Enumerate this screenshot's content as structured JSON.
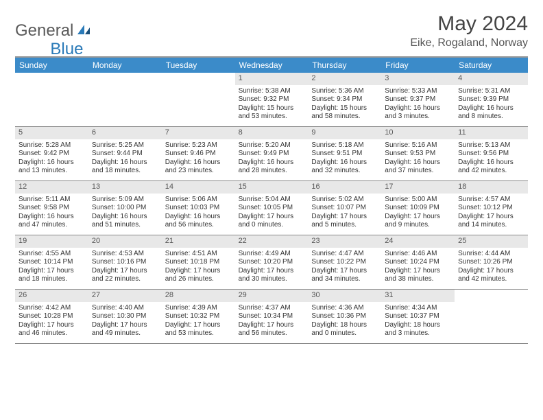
{
  "logo": {
    "text1": "General",
    "text2": "Blue"
  },
  "title": {
    "month": "May 2024",
    "location": "Eike, Rogaland, Norway"
  },
  "colors": {
    "header_bg": "#3b8bc9",
    "header_text": "#ffffff",
    "daynum_bg": "#e8e8e8",
    "border": "#888888",
    "top_border": "#999999",
    "text": "#333333"
  },
  "day_names": [
    "Sunday",
    "Monday",
    "Tuesday",
    "Wednesday",
    "Thursday",
    "Friday",
    "Saturday"
  ],
  "weeks": [
    [
      {
        "n": "",
        "sunrise": "",
        "sunset": "",
        "daylight": ""
      },
      {
        "n": "",
        "sunrise": "",
        "sunset": "",
        "daylight": ""
      },
      {
        "n": "",
        "sunrise": "",
        "sunset": "",
        "daylight": ""
      },
      {
        "n": "1",
        "sunrise": "Sunrise: 5:38 AM",
        "sunset": "Sunset: 9:32 PM",
        "daylight": "Daylight: 15 hours and 53 minutes."
      },
      {
        "n": "2",
        "sunrise": "Sunrise: 5:36 AM",
        "sunset": "Sunset: 9:34 PM",
        "daylight": "Daylight: 15 hours and 58 minutes."
      },
      {
        "n": "3",
        "sunrise": "Sunrise: 5:33 AM",
        "sunset": "Sunset: 9:37 PM",
        "daylight": "Daylight: 16 hours and 3 minutes."
      },
      {
        "n": "4",
        "sunrise": "Sunrise: 5:31 AM",
        "sunset": "Sunset: 9:39 PM",
        "daylight": "Daylight: 16 hours and 8 minutes."
      }
    ],
    [
      {
        "n": "5",
        "sunrise": "Sunrise: 5:28 AM",
        "sunset": "Sunset: 9:42 PM",
        "daylight": "Daylight: 16 hours and 13 minutes."
      },
      {
        "n": "6",
        "sunrise": "Sunrise: 5:25 AM",
        "sunset": "Sunset: 9:44 PM",
        "daylight": "Daylight: 16 hours and 18 minutes."
      },
      {
        "n": "7",
        "sunrise": "Sunrise: 5:23 AM",
        "sunset": "Sunset: 9:46 PM",
        "daylight": "Daylight: 16 hours and 23 minutes."
      },
      {
        "n": "8",
        "sunrise": "Sunrise: 5:20 AM",
        "sunset": "Sunset: 9:49 PM",
        "daylight": "Daylight: 16 hours and 28 minutes."
      },
      {
        "n": "9",
        "sunrise": "Sunrise: 5:18 AM",
        "sunset": "Sunset: 9:51 PM",
        "daylight": "Daylight: 16 hours and 32 minutes."
      },
      {
        "n": "10",
        "sunrise": "Sunrise: 5:16 AM",
        "sunset": "Sunset: 9:53 PM",
        "daylight": "Daylight: 16 hours and 37 minutes."
      },
      {
        "n": "11",
        "sunrise": "Sunrise: 5:13 AM",
        "sunset": "Sunset: 9:56 PM",
        "daylight": "Daylight: 16 hours and 42 minutes."
      }
    ],
    [
      {
        "n": "12",
        "sunrise": "Sunrise: 5:11 AM",
        "sunset": "Sunset: 9:58 PM",
        "daylight": "Daylight: 16 hours and 47 minutes."
      },
      {
        "n": "13",
        "sunrise": "Sunrise: 5:09 AM",
        "sunset": "Sunset: 10:00 PM",
        "daylight": "Daylight: 16 hours and 51 minutes."
      },
      {
        "n": "14",
        "sunrise": "Sunrise: 5:06 AM",
        "sunset": "Sunset: 10:03 PM",
        "daylight": "Daylight: 16 hours and 56 minutes."
      },
      {
        "n": "15",
        "sunrise": "Sunrise: 5:04 AM",
        "sunset": "Sunset: 10:05 PM",
        "daylight": "Daylight: 17 hours and 0 minutes."
      },
      {
        "n": "16",
        "sunrise": "Sunrise: 5:02 AM",
        "sunset": "Sunset: 10:07 PM",
        "daylight": "Daylight: 17 hours and 5 minutes."
      },
      {
        "n": "17",
        "sunrise": "Sunrise: 5:00 AM",
        "sunset": "Sunset: 10:09 PM",
        "daylight": "Daylight: 17 hours and 9 minutes."
      },
      {
        "n": "18",
        "sunrise": "Sunrise: 4:57 AM",
        "sunset": "Sunset: 10:12 PM",
        "daylight": "Daylight: 17 hours and 14 minutes."
      }
    ],
    [
      {
        "n": "19",
        "sunrise": "Sunrise: 4:55 AM",
        "sunset": "Sunset: 10:14 PM",
        "daylight": "Daylight: 17 hours and 18 minutes."
      },
      {
        "n": "20",
        "sunrise": "Sunrise: 4:53 AM",
        "sunset": "Sunset: 10:16 PM",
        "daylight": "Daylight: 17 hours and 22 minutes."
      },
      {
        "n": "21",
        "sunrise": "Sunrise: 4:51 AM",
        "sunset": "Sunset: 10:18 PM",
        "daylight": "Daylight: 17 hours and 26 minutes."
      },
      {
        "n": "22",
        "sunrise": "Sunrise: 4:49 AM",
        "sunset": "Sunset: 10:20 PM",
        "daylight": "Daylight: 17 hours and 30 minutes."
      },
      {
        "n": "23",
        "sunrise": "Sunrise: 4:47 AM",
        "sunset": "Sunset: 10:22 PM",
        "daylight": "Daylight: 17 hours and 34 minutes."
      },
      {
        "n": "24",
        "sunrise": "Sunrise: 4:46 AM",
        "sunset": "Sunset: 10:24 PM",
        "daylight": "Daylight: 17 hours and 38 minutes."
      },
      {
        "n": "25",
        "sunrise": "Sunrise: 4:44 AM",
        "sunset": "Sunset: 10:26 PM",
        "daylight": "Daylight: 17 hours and 42 minutes."
      }
    ],
    [
      {
        "n": "26",
        "sunrise": "Sunrise: 4:42 AM",
        "sunset": "Sunset: 10:28 PM",
        "daylight": "Daylight: 17 hours and 46 minutes."
      },
      {
        "n": "27",
        "sunrise": "Sunrise: 4:40 AM",
        "sunset": "Sunset: 10:30 PM",
        "daylight": "Daylight: 17 hours and 49 minutes."
      },
      {
        "n": "28",
        "sunrise": "Sunrise: 4:39 AM",
        "sunset": "Sunset: 10:32 PM",
        "daylight": "Daylight: 17 hours and 53 minutes."
      },
      {
        "n": "29",
        "sunrise": "Sunrise: 4:37 AM",
        "sunset": "Sunset: 10:34 PM",
        "daylight": "Daylight: 17 hours and 56 minutes."
      },
      {
        "n": "30",
        "sunrise": "Sunrise: 4:36 AM",
        "sunset": "Sunset: 10:36 PM",
        "daylight": "Daylight: 18 hours and 0 minutes."
      },
      {
        "n": "31",
        "sunrise": "Sunrise: 4:34 AM",
        "sunset": "Sunset: 10:37 PM",
        "daylight": "Daylight: 18 hours and 3 minutes."
      },
      {
        "n": "",
        "sunrise": "",
        "sunset": "",
        "daylight": ""
      }
    ]
  ]
}
